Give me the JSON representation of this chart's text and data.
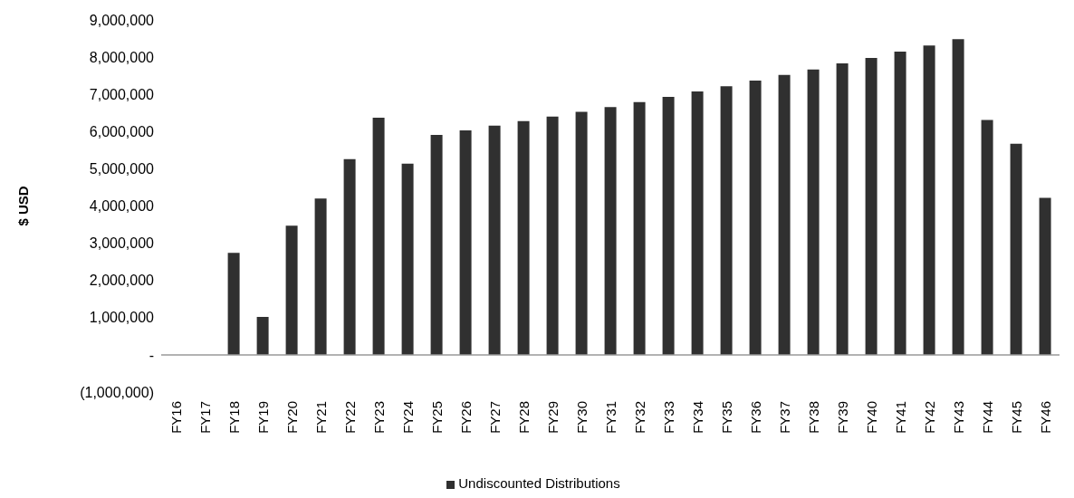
{
  "chart_data": {
    "type": "bar",
    "ylabel": "$ USD",
    "categories": [
      "FY16",
      "FY17",
      "FY18",
      "FY19",
      "FY20",
      "FY21",
      "FY22",
      "FY23",
      "FY24",
      "FY25",
      "FY26",
      "FY27",
      "FY28",
      "FY29",
      "FY30",
      "FY31",
      "FY32",
      "FY33",
      "FY34",
      "FY35",
      "FY36",
      "FY37",
      "FY38",
      "FY39",
      "FY40",
      "FY41",
      "FY42",
      "FY43",
      "FY44",
      "FY45",
      "FY46"
    ],
    "series": [
      {
        "name": "Undiscounted Distributions",
        "color": "#303030",
        "values": [
          0,
          0,
          2740000,
          1020000,
          3470000,
          4200000,
          5260000,
          6370000,
          5140000,
          5910000,
          6030000,
          6160000,
          6280000,
          6400000,
          6530000,
          6660000,
          6790000,
          6930000,
          7080000,
          7220000,
          7370000,
          7520000,
          7670000,
          7830000,
          7980000,
          8150000,
          8310000,
          8480000,
          6310000,
          5670000,
          4220000
        ]
      }
    ],
    "ylim": [
      -1000000,
      9000000
    ],
    "yticks": [
      {
        "value": -1000000,
        "label": "(1,000,000)"
      },
      {
        "value": 0,
        "label": "-"
      },
      {
        "value": 1000000,
        "label": "1,000,000"
      },
      {
        "value": 2000000,
        "label": "2,000,000"
      },
      {
        "value": 3000000,
        "label": "3,000,000"
      },
      {
        "value": 4000000,
        "label": "4,000,000"
      },
      {
        "value": 5000000,
        "label": "5,000,000"
      },
      {
        "value": 6000000,
        "label": "6,000,000"
      },
      {
        "value": 7000000,
        "label": "7,000,000"
      },
      {
        "value": 8000000,
        "label": "8,000,000"
      },
      {
        "value": 9000000,
        "label": "9,000,000"
      }
    ],
    "legend": "bottom"
  }
}
